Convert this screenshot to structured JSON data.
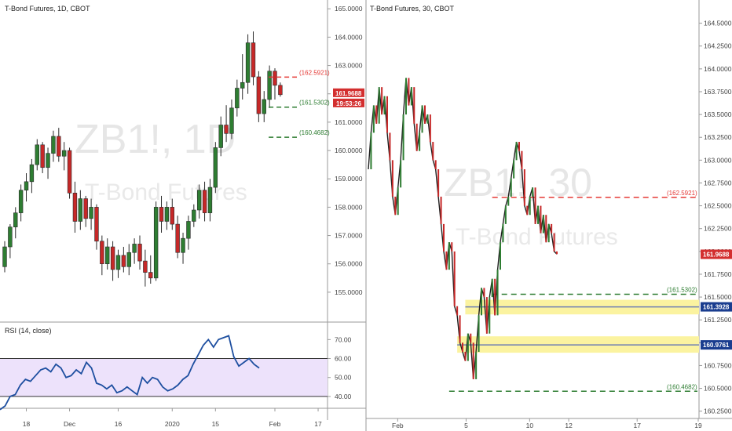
{
  "colors": {
    "up": "#2e7d32",
    "down": "#c62828",
    "rsi_line": "#1e4fa0",
    "rsi_band": "#ede2fb",
    "level_red": "#e53935",
    "level_green": "#2e7d32",
    "zone": "#fbf3a0",
    "zone_line": "#6f7fb3",
    "axis_text": "#444444",
    "label_red_bg": "#d32f2f",
    "label_blue_bg": "#1a3d8f"
  },
  "chart_data": [
    {
      "type": "candlestick",
      "title": "T-Bond Futures, 1D, CBOT",
      "watermark_symbol": "ZB1!, 1D",
      "watermark_name": "T-Bond Futures",
      "ylim": [
        154.25,
        165.2
      ],
      "y_ticks": [
        "155.0000",
        "156.0000",
        "157.0000",
        "158.0000",
        "159.0000",
        "160.0000",
        "161.0000",
        "162.0000",
        "163.0000",
        "164.0000",
        "165.0000"
      ],
      "x_ticks": [
        {
          "label": "18",
          "index": 4
        },
        {
          "label": "Dec",
          "index": 12
        },
        {
          "label": "16",
          "index": 21
        },
        {
          "label": "2020",
          "index": 31
        },
        {
          "label": "15",
          "index": 39
        },
        {
          "label": "Feb",
          "index": 50
        },
        {
          "label": "17",
          "index": 58
        }
      ],
      "candles": [
        [
          155.9,
          156.8,
          155.7,
          156.6
        ],
        [
          156.6,
          157.4,
          156.2,
          157.3
        ],
        [
          157.3,
          158.0,
          156.9,
          157.8
        ],
        [
          157.8,
          158.8,
          157.5,
          158.6
        ],
        [
          158.6,
          159.2,
          158.2,
          158.9
        ],
        [
          158.9,
          159.7,
          158.5,
          159.5
        ],
        [
          159.5,
          160.4,
          159.3,
          160.2
        ],
        [
          160.2,
          160.3,
          159.2,
          159.4
        ],
        [
          159.4,
          160.1,
          159.0,
          159.9
        ],
        [
          159.9,
          160.7,
          159.6,
          160.5
        ],
        [
          160.5,
          160.8,
          159.6,
          159.8
        ],
        [
          159.8,
          160.3,
          159.3,
          160.0
        ],
        [
          160.0,
          160.1,
          158.3,
          158.5
        ],
        [
          158.5,
          158.9,
          157.1,
          157.5
        ],
        [
          157.5,
          158.6,
          157.2,
          158.3
        ],
        [
          158.3,
          158.4,
          157.3,
          157.6
        ],
        [
          157.6,
          158.3,
          157.2,
          158.0
        ],
        [
          158.0,
          158.1,
          156.5,
          156.8
        ],
        [
          156.8,
          157.0,
          155.6,
          156.0
        ],
        [
          156.0,
          156.9,
          155.8,
          156.6
        ],
        [
          156.6,
          156.8,
          155.4,
          155.8
        ],
        [
          155.8,
          156.5,
          155.5,
          156.3
        ],
        [
          156.3,
          156.6,
          155.7,
          155.9
        ],
        [
          155.9,
          156.7,
          155.6,
          156.4
        ],
        [
          156.4,
          156.9,
          156.0,
          156.7
        ],
        [
          156.7,
          157.0,
          155.8,
          156.1
        ],
        [
          156.1,
          156.5,
          155.2,
          155.7
        ],
        [
          155.7,
          156.3,
          155.3,
          155.5
        ],
        [
          155.5,
          158.2,
          155.4,
          158.0
        ],
        [
          158.0,
          158.4,
          157.1,
          157.5
        ],
        [
          157.5,
          158.2,
          157.2,
          158.0
        ],
        [
          158.0,
          158.3,
          157.2,
          157.4
        ],
        [
          157.4,
          157.7,
          156.2,
          156.4
        ],
        [
          156.4,
          157.1,
          156.0,
          156.9
        ],
        [
          156.9,
          157.7,
          156.5,
          157.5
        ],
        [
          157.5,
          158.1,
          157.3,
          157.9
        ],
        [
          157.9,
          158.8,
          157.6,
          158.6
        ],
        [
          158.6,
          158.9,
          157.5,
          157.8
        ],
        [
          157.8,
          159.0,
          157.5,
          158.7
        ],
        [
          158.7,
          160.3,
          158.5,
          160.1
        ],
        [
          160.1,
          161.2,
          159.8,
          160.9
        ],
        [
          160.9,
          161.6,
          160.3,
          160.6
        ],
        [
          160.6,
          161.8,
          160.4,
          161.5
        ],
        [
          161.5,
          162.5,
          161.2,
          162.2
        ],
        [
          162.2,
          163.4,
          161.8,
          162.4
        ],
        [
          162.4,
          164.1,
          162.0,
          163.8
        ],
        [
          163.8,
          164.2,
          162.3,
          162.6
        ],
        [
          162.6,
          162.8,
          161.0,
          161.3
        ],
        [
          161.3,
          162.1,
          161.0,
          161.8
        ],
        [
          161.8,
          163.0,
          161.5,
          162.8
        ],
        [
          162.8,
          162.9,
          161.8,
          162.3
        ],
        [
          162.3,
          162.4,
          161.9,
          161.97
        ]
      ],
      "levels": [
        {
          "value": 162.5921,
          "label": "(162.5921)",
          "color": "red",
          "from_index": 49
        },
        {
          "value": 161.5302,
          "label": "(161.5302)",
          "color": "green",
          "from_index": 49
        },
        {
          "value": 160.4682,
          "label": "(160.4682)",
          "color": "green",
          "from_index": 49
        }
      ],
      "price_label": "161.9688",
      "countdown_label": "19:53:26"
    },
    {
      "type": "line",
      "title": "RSI (14, close)",
      "ylim": [
        35,
        78
      ],
      "y_ticks": [
        "40.00",
        "50.00",
        "60.00",
        "70.00"
      ],
      "band": [
        40,
        60
      ],
      "values": [
        33,
        35,
        40,
        41,
        46,
        49,
        48,
        51,
        54,
        55,
        53,
        57,
        55,
        50,
        51,
        54,
        52,
        58,
        55,
        47,
        46,
        44,
        46,
        42,
        43,
        45,
        43,
        41,
        50,
        47,
        50,
        49,
        45,
        43,
        44,
        46,
        49,
        51,
        57,
        62,
        67,
        70,
        66,
        70,
        71,
        72,
        61,
        56,
        58,
        60,
        57,
        55
      ]
    },
    {
      "type": "line",
      "title": "T-Bond Futures, 30, CBOT",
      "watermark_symbol": "ZB1!, 30",
      "watermark_name": "T-Bond Futures",
      "ylim": [
        160.17,
        164.72
      ],
      "y_ticks": [
        "160.2500",
        "160.5000",
        "160.7500",
        "161.0000",
        "161.2500",
        "161.5000",
        "161.7500",
        "162.0000",
        "162.2500",
        "162.5000",
        "162.7500",
        "163.0000",
        "163.2500",
        "163.5000",
        "163.7500",
        "164.0000",
        "164.2500",
        "164.5000"
      ],
      "x_ticks": [
        {
          "label": "Feb",
          "index": 12
        },
        {
          "label": "5",
          "index": 40
        },
        {
          "label": "10",
          "index": 66
        },
        {
          "label": "12",
          "index": 82
        },
        {
          "label": "17",
          "index": 110
        },
        {
          "label": "19",
          "index": 135
        }
      ],
      "values": [
        162.9,
        163.3,
        163.6,
        163.4,
        163.8,
        163.5,
        163.7,
        163.3,
        163.0,
        162.6,
        162.4,
        162.7,
        163.0,
        163.5,
        163.9,
        163.6,
        163.8,
        163.4,
        163.1,
        163.3,
        163.6,
        163.4,
        163.5,
        163.2,
        163.0,
        162.9,
        162.6,
        162.3,
        162.0,
        161.8,
        162.1,
        162.0,
        161.4,
        161.3,
        161.0,
        160.9,
        160.8,
        161.1,
        161.0,
        160.6,
        160.9,
        161.3,
        161.6,
        161.5,
        161.1,
        161.5,
        161.7,
        161.3,
        161.8,
        162.1,
        162.3,
        162.5,
        162.6,
        162.8,
        163.0,
        163.2,
        163.1,
        162.9,
        162.5,
        162.4,
        162.6,
        162.7,
        162.3,
        162.5,
        162.2,
        162.4,
        162.1,
        162.3,
        162.2,
        162.0,
        161.97
      ],
      "levels": [
        {
          "value": 162.5921,
          "label": "(162.5921)",
          "color": "red",
          "from_index": 46
        },
        {
          "value": 161.5302,
          "label": "(161.5302)",
          "color": "green",
          "from_index": 46
        },
        {
          "value": 160.4682,
          "label": "(160.4682)",
          "color": "green",
          "from_index": 30
        }
      ],
      "zones": [
        {
          "low": 161.31,
          "high": 161.47,
          "line": 161.3928,
          "label": "161.3928",
          "from_index": 36
        },
        {
          "low": 160.89,
          "high": 161.07,
          "line": 160.9761,
          "label": "160.9761",
          "from_index": 33
        }
      ],
      "price_label": "161.9688"
    }
  ]
}
